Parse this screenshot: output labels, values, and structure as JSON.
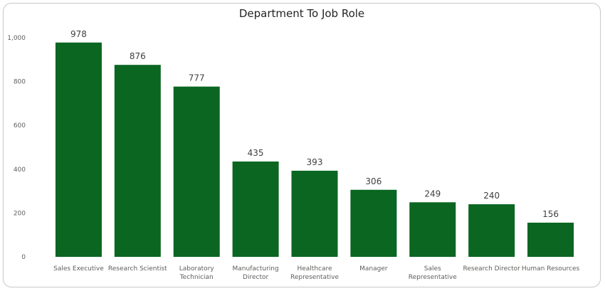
{
  "chart_data": {
    "type": "bar",
    "title": "Department To Job Role",
    "xlabel": "",
    "ylabel": "",
    "ylim": [
      0,
      1000
    ],
    "yticks": [
      0,
      200,
      400,
      600,
      800,
      1000
    ],
    "ytick_labels": [
      "0",
      "200",
      "400",
      "600",
      "800",
      "1,000"
    ],
    "grid": false,
    "bar_color": "#0a6621",
    "categories": [
      [
        "Sales Executive"
      ],
      [
        "Research Scientist"
      ],
      [
        "Laboratory",
        "Technician"
      ],
      [
        "Manufacturing",
        "Director"
      ],
      [
        "Healthcare",
        "Representative"
      ],
      [
        "Manager"
      ],
      [
        "Sales",
        "Representative"
      ],
      [
        "Research Director"
      ],
      [
        "Human Resources"
      ]
    ],
    "values": [
      978,
      876,
      777,
      435,
      393,
      306,
      249,
      240,
      156
    ]
  }
}
